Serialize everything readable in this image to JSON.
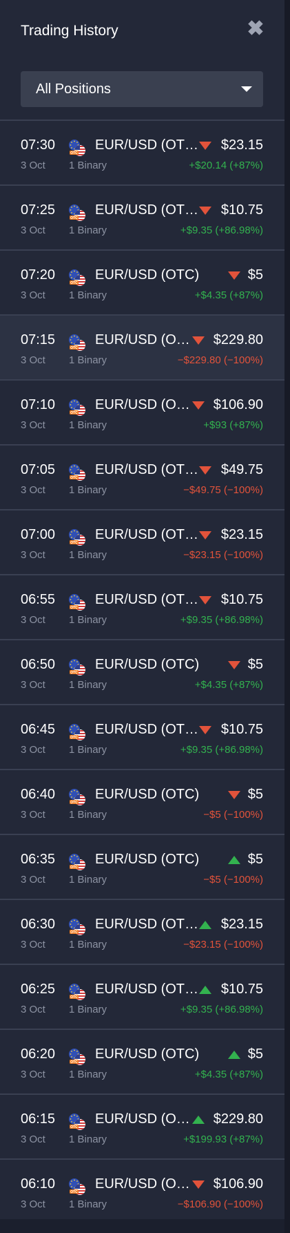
{
  "header": {
    "title": "Trading History",
    "close_icon": "close-icon"
  },
  "filter": {
    "selected": "All Positions"
  },
  "colors": {
    "up": "#33b24f",
    "down": "#e2533b"
  },
  "trades": [
    {
      "time": "07:30",
      "date": "3 Oct",
      "asset": "EUR/USD (OT…",
      "type": "1 Binary",
      "direction": "down",
      "amount": "$23.15",
      "pnl": "+$20.14 (+87%)",
      "result": "pos"
    },
    {
      "time": "07:25",
      "date": "3 Oct",
      "asset": "EUR/USD (OT…",
      "type": "1 Binary",
      "direction": "down",
      "amount": "$10.75",
      "pnl": "+$9.35 (+86.98%)",
      "result": "pos"
    },
    {
      "time": "07:20",
      "date": "3 Oct",
      "asset": "EUR/USD (OTC)",
      "type": "1 Binary",
      "direction": "down",
      "amount": "$5",
      "pnl": "+$4.35 (+87%)",
      "result": "pos"
    },
    {
      "time": "07:15",
      "date": "3 Oct",
      "asset": "EUR/USD (O…",
      "type": "1 Binary",
      "direction": "down",
      "amount": "$229.80",
      "pnl": "−$229.80 (−100%)",
      "result": "neg",
      "highlight": true
    },
    {
      "time": "07:10",
      "date": "3 Oct",
      "asset": "EUR/USD (O…",
      "type": "1 Binary",
      "direction": "down",
      "amount": "$106.90",
      "pnl": "+$93 (+87%)",
      "result": "pos"
    },
    {
      "time": "07:05",
      "date": "3 Oct",
      "asset": "EUR/USD (OT…",
      "type": "1 Binary",
      "direction": "down",
      "amount": "$49.75",
      "pnl": "−$49.75 (−100%)",
      "result": "neg"
    },
    {
      "time": "07:00",
      "date": "3 Oct",
      "asset": "EUR/USD (OT…",
      "type": "1 Binary",
      "direction": "down",
      "amount": "$23.15",
      "pnl": "−$23.15 (−100%)",
      "result": "neg"
    },
    {
      "time": "06:55",
      "date": "3 Oct",
      "asset": "EUR/USD (OT…",
      "type": "1 Binary",
      "direction": "down",
      "amount": "$10.75",
      "pnl": "+$9.35 (+86.98%)",
      "result": "pos"
    },
    {
      "time": "06:50",
      "date": "3 Oct",
      "asset": "EUR/USD (OTC)",
      "type": "1 Binary",
      "direction": "down",
      "amount": "$5",
      "pnl": "+$4.35 (+87%)",
      "result": "pos"
    },
    {
      "time": "06:45",
      "date": "3 Oct",
      "asset": "EUR/USD (OT…",
      "type": "1 Binary",
      "direction": "down",
      "amount": "$10.75",
      "pnl": "+$9.35 (+86.98%)",
      "result": "pos"
    },
    {
      "time": "06:40",
      "date": "3 Oct",
      "asset": "EUR/USD (OTC)",
      "type": "1 Binary",
      "direction": "down",
      "amount": "$5",
      "pnl": "−$5 (−100%)",
      "result": "neg"
    },
    {
      "time": "06:35",
      "date": "3 Oct",
      "asset": "EUR/USD (OTC)",
      "type": "1 Binary",
      "direction": "up",
      "amount": "$5",
      "pnl": "−$5 (−100%)",
      "result": "neg"
    },
    {
      "time": "06:30",
      "date": "3 Oct",
      "asset": "EUR/USD (OT…",
      "type": "1 Binary",
      "direction": "up",
      "amount": "$23.15",
      "pnl": "−$23.15 (−100%)",
      "result": "neg"
    },
    {
      "time": "06:25",
      "date": "3 Oct",
      "asset": "EUR/USD (OT…",
      "type": "1 Binary",
      "direction": "up",
      "amount": "$10.75",
      "pnl": "+$9.35 (+86.98%)",
      "result": "pos"
    },
    {
      "time": "06:20",
      "date": "3 Oct",
      "asset": "EUR/USD (OTC)",
      "type": "1 Binary",
      "direction": "up",
      "amount": "$5",
      "pnl": "+$4.35 (+87%)",
      "result": "pos"
    },
    {
      "time": "06:15",
      "date": "3 Oct",
      "asset": "EUR/USD (O…",
      "type": "1 Binary",
      "direction": "up",
      "amount": "$229.80",
      "pnl": "+$199.93 (+87%)",
      "result": "pos"
    },
    {
      "time": "06:10",
      "date": "3 Oct",
      "asset": "EUR/USD (O…",
      "type": "1 Binary",
      "direction": "down",
      "amount": "$106.90",
      "pnl": "−$106.90 (−100%)",
      "result": "neg"
    }
  ]
}
